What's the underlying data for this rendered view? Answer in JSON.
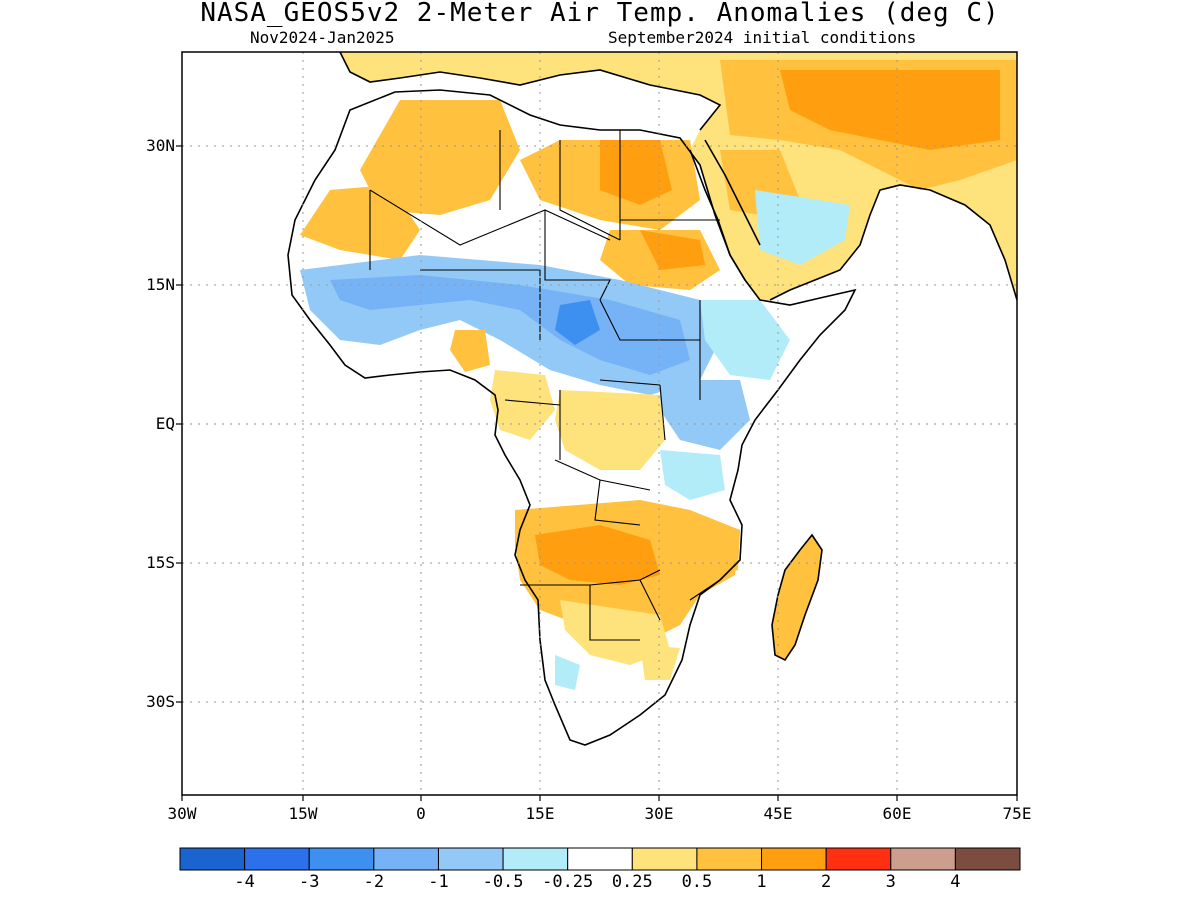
{
  "header": {
    "title": "NASA_GEOS5v2 2-Meter Air Temp. Anomalies (deg C)",
    "period": "Nov2024-Jan2025",
    "init": "September2024 initial conditions"
  },
  "axes": {
    "y_ticks": [
      "30N",
      "15N",
      "EQ",
      "15S",
      "30S"
    ],
    "x_ticks": [
      "30W",
      "15W",
      "0",
      "15E",
      "30E",
      "45E",
      "60E",
      "75E"
    ]
  },
  "colorbar": {
    "labels": [
      "-4",
      "-3",
      "-2",
      "-1",
      "-0.5",
      "-0.25",
      "0.25",
      "0.5",
      "1",
      "2",
      "3",
      "4"
    ],
    "colors": [
      "#1a64d0",
      "#2c70ec",
      "#3d8ff0",
      "#75b3f6",
      "#93c9f7",
      "#b3ecf9",
      "#ffffff",
      "#fee27c",
      "#ffc13e",
      "#ff9e0f",
      "#ff3011",
      "#cb9e8e",
      "#7a4d40"
    ]
  },
  "palette": {
    "ocean": "#ffffff",
    "warm_light": "#fee27c",
    "warm_mid": "#ffc13e",
    "warm_strong": "#ff9e0f",
    "cool_light": "#b3ecf9",
    "cool_mid": "#93c9f7",
    "cool_strong": "#75b3f6",
    "cool_deep": "#3d8ff0"
  }
}
